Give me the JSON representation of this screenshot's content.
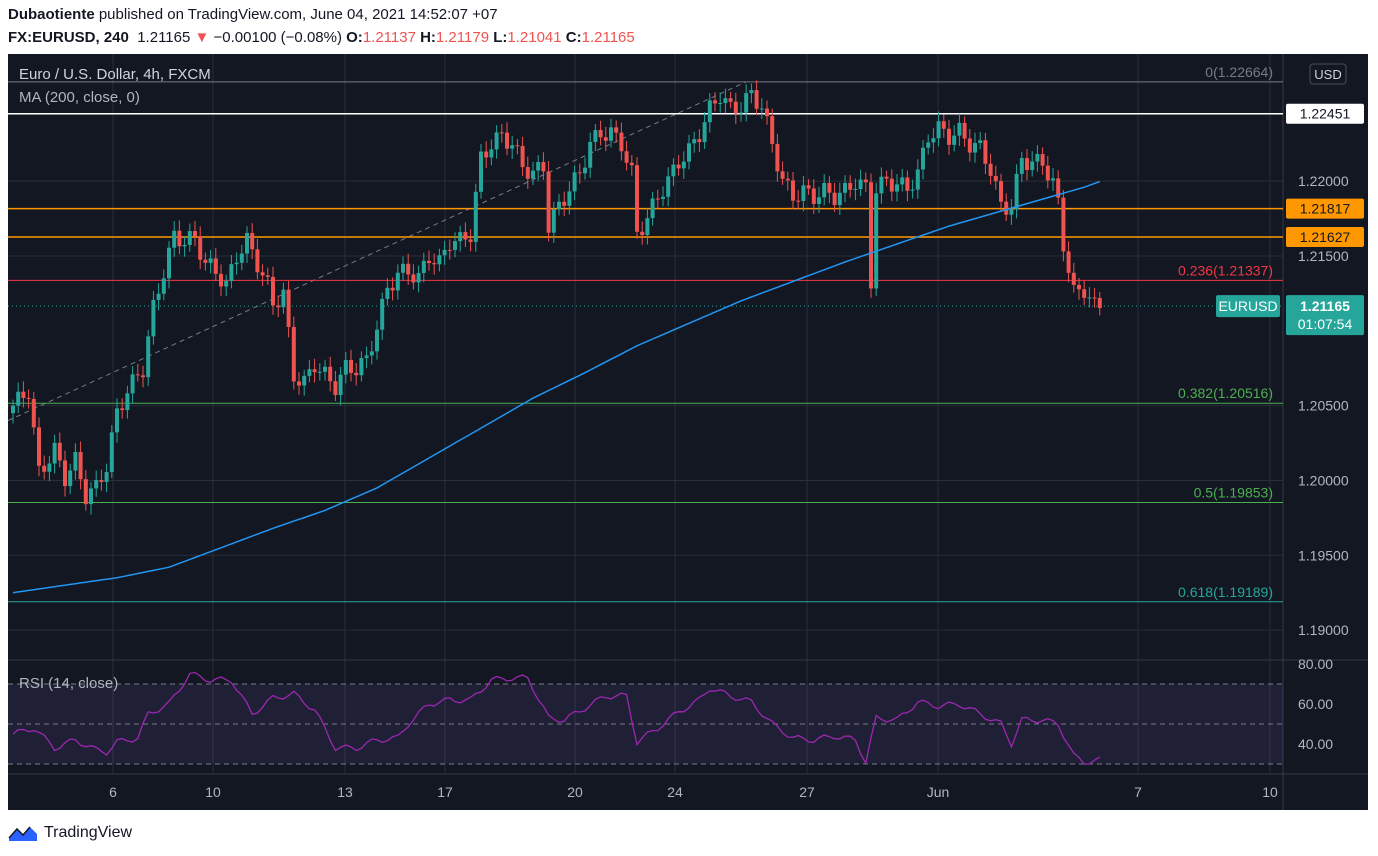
{
  "header": {
    "author": "Dubaotiente",
    "published": "published on TradingView.com, June 04, 2021 14:52:07 +07",
    "symbol": "FX:EURUSD, 240",
    "last": "1.21165",
    "change": "−0.00100 (−0.08%)",
    "o_label": "O:",
    "o": "1.21137",
    "h_label": "H:",
    "h": "1.21179",
    "l_label": "L:",
    "l": "1.21041",
    "c_label": "C:",
    "c": "1.21165",
    "down_arrow": "▼"
  },
  "legend": {
    "title": "Euro / U.S. Dollar, 4h, FXCM",
    "ma": "MA (200, close, 0)",
    "rsi": "RSI (14, close)"
  },
  "footer": {
    "brand": "TradingView"
  },
  "colors": {
    "background": "#131722",
    "up": "#26a69a",
    "down": "#ef5350",
    "ma": "#2196f3",
    "rsi": "#9c27b0",
    "orange": "#ff9800",
    "fib_green": "#4caf50",
    "fib_teal": "#26a69a",
    "fib_red": "#f23645"
  },
  "chart_data": [
    {
      "type": "candlestick",
      "title": "Euro / U.S. Dollar, 4h, FXCM",
      "currency": "USD",
      "ylim": [
        1.188,
        1.2285
      ],
      "y_ticks": [
        "1.19000",
        "1.19500",
        "1.20000",
        "1.20500",
        "1.21500",
        "1.22000"
      ],
      "x_ticks": [
        "6",
        "10",
        "13",
        "17",
        "20",
        "24",
        "27",
        "Jun",
        "7",
        "10"
      ],
      "hlines": [
        {
          "label": "1.22451",
          "value": 1.22451,
          "color": "#ffffff",
          "style": "badge-white"
        },
        {
          "label": "1.21817",
          "value": 1.21817,
          "color": "#ff9800",
          "style": "badge-orange"
        },
        {
          "label": "1.21627",
          "value": 1.21627,
          "color": "#ff9800",
          "style": "badge-orange"
        }
      ],
      "fib_levels": [
        {
          "label": "0(1.22664)",
          "value": 1.22664,
          "color": "#787b86"
        },
        {
          "label": "0.236(1.21337)",
          "value": 1.21337,
          "color": "#f23645"
        },
        {
          "label": "0.382(1.20516)",
          "value": 1.20516,
          "color": "#4caf50"
        },
        {
          "label": "0.5(1.19853)",
          "value": 1.19853,
          "color": "#4caf50"
        },
        {
          "label": "0.618(1.19189)",
          "value": 1.19189,
          "color": "#26a69a"
        }
      ],
      "last_price": {
        "symbol": "EURUSD",
        "value": "1.21165",
        "countdown": "01:07:54"
      },
      "ohlc_anchors": [
        [
          0,
          1.205
        ],
        [
          3,
          1.206
        ],
        [
          5,
          1.2005
        ],
        [
          8,
          1.202
        ],
        [
          10,
          1.2002
        ],
        [
          12,
          1.2013
        ],
        [
          14,
          1.199
        ],
        [
          16,
          1.1995
        ],
        [
          18,
          1.201
        ],
        [
          20,
          1.2045
        ],
        [
          22,
          1.206
        ],
        [
          25,
          1.2075
        ],
        [
          27,
          1.2115
        ],
        [
          29,
          1.214
        ],
        [
          31,
          1.2163
        ],
        [
          33,
          1.216
        ],
        [
          35,
          1.2162
        ],
        [
          37,
          1.2145
        ],
        [
          39,
          1.214
        ],
        [
          41,
          1.213
        ],
        [
          43,
          1.215
        ],
        [
          45,
          1.216
        ],
        [
          47,
          1.2145
        ],
        [
          49,
          1.213
        ],
        [
          50,
          1.2118
        ],
        [
          52,
          1.2125
        ],
        [
          54,
          1.207
        ],
        [
          56,
          1.2065
        ],
        [
          58,
          1.2078
        ],
        [
          60,
          1.207
        ],
        [
          62,
          1.2063
        ],
        [
          64,
          1.2075
        ],
        [
          66,
          1.2075
        ],
        [
          68,
          1.208
        ],
        [
          70,
          1.2103
        ],
        [
          72,
          1.2128
        ],
        [
          74,
          1.2138
        ],
        [
          76,
          1.214
        ],
        [
          78,
          1.2135
        ],
        [
          80,
          1.215
        ],
        [
          82,
          1.2145
        ],
        [
          84,
          1.216
        ],
        [
          86,
          1.216
        ],
        [
          88,
          1.2165
        ],
        [
          90,
          1.2215
        ],
        [
          92,
          1.2225
        ],
        [
          94,
          1.223
        ],
        [
          96,
          1.2225
        ],
        [
          98,
          1.221
        ],
        [
          100,
          1.2205
        ],
        [
          102,
          1.221
        ],
        [
          103,
          1.217
        ],
        [
          105,
          1.2183
        ],
        [
          107,
          1.2195
        ],
        [
          109,
          1.2205
        ],
        [
          111,
          1.2225
        ],
        [
          113,
          1.2232
        ],
        [
          115,
          1.2232
        ],
        [
          117,
          1.2225
        ],
        [
          119,
          1.2205
        ],
        [
          120,
          1.2165
        ],
        [
          122,
          1.2175
        ],
        [
          124,
          1.219
        ],
        [
          126,
          1.22
        ],
        [
          128,
          1.2213
        ],
        [
          130,
          1.222
        ],
        [
          132,
          1.2232
        ],
        [
          134,
          1.2248
        ],
        [
          136,
          1.2258
        ],
        [
          138,
          1.2248
        ],
        [
          140,
          1.225
        ],
        [
          142,
          1.2258
        ],
        [
          144,
          1.225
        ],
        [
          146,
          1.2225
        ],
        [
          148,
          1.22
        ],
        [
          150,
          1.219
        ],
        [
          152,
          1.2193
        ],
        [
          154,
          1.219
        ],
        [
          156,
          1.2193
        ],
        [
          158,
          1.219
        ],
        [
          160,
          1.2193
        ],
        [
          162,
          1.22
        ],
        [
          164,
          1.2195
        ],
        [
          165,
          1.2133
        ],
        [
          166,
          1.2195
        ],
        [
          168,
          1.22
        ],
        [
          170,
          1.2198
        ],
        [
          172,
          1.2195
        ],
        [
          174,
          1.2205
        ],
        [
          176,
          1.223
        ],
        [
          178,
          1.2235
        ],
        [
          180,
          1.223
        ],
        [
          182,
          1.2233
        ],
        [
          184,
          1.2225
        ],
        [
          186,
          1.2222
        ],
        [
          188,
          1.2208
        ],
        [
          190,
          1.2183
        ],
        [
          192,
          1.2183
        ],
        [
          194,
          1.2215
        ],
        [
          196,
          1.2212
        ],
        [
          198,
          1.2213
        ],
        [
          200,
          1.2198
        ],
        [
          201,
          1.2185
        ],
        [
          202,
          1.2158
        ],
        [
          204,
          1.2125
        ],
        [
          206,
          1.2128
        ],
        [
          208,
          1.2116
        ],
        [
          209,
          1.2117
        ]
      ],
      "ma200_anchors": [
        [
          0,
          1.1925
        ],
        [
          10,
          1.193
        ],
        [
          20,
          1.1935
        ],
        [
          30,
          1.1942
        ],
        [
          40,
          1.1955
        ],
        [
          50,
          1.1968
        ],
        [
          60,
          1.198
        ],
        [
          70,
          1.1995
        ],
        [
          80,
          1.2015
        ],
        [
          90,
          1.2035
        ],
        [
          100,
          1.2055
        ],
        [
          110,
          1.2072
        ],
        [
          120,
          1.209
        ],
        [
          130,
          1.2105
        ],
        [
          140,
          1.212
        ],
        [
          150,
          1.2133
        ],
        [
          160,
          1.2146
        ],
        [
          170,
          1.2158
        ],
        [
          180,
          1.217
        ],
        [
          190,
          1.218
        ],
        [
          200,
          1.219
        ],
        [
          206,
          1.2196
        ],
        [
          210,
          1.2201
        ]
      ]
    },
    {
      "type": "line",
      "title": "RSI (14, close)",
      "ylim": [
        25,
        82
      ],
      "y_ticks": [
        "40.00",
        "60.00",
        "80.00"
      ],
      "bands": [
        30,
        50,
        70
      ],
      "rsi_anchors": [
        [
          0,
          45
        ],
        [
          4,
          48
        ],
        [
          8,
          38
        ],
        [
          12,
          42
        ],
        [
          16,
          37
        ],
        [
          18,
          36
        ],
        [
          20,
          41
        ],
        [
          24,
          43
        ],
        [
          26,
          55
        ],
        [
          30,
          60
        ],
        [
          34,
          75
        ],
        [
          38,
          72
        ],
        [
          42,
          72
        ],
        [
          46,
          55
        ],
        [
          50,
          63
        ],
        [
          54,
          65
        ],
        [
          58,
          57
        ],
        [
          62,
          38
        ],
        [
          66,
          38
        ],
        [
          70,
          42
        ],
        [
          74,
          43
        ],
        [
          76,
          50
        ],
        [
          80,
          60
        ],
        [
          84,
          62
        ],
        [
          88,
          62
        ],
        [
          92,
          72
        ],
        [
          96,
          73
        ],
        [
          99,
          73
        ],
        [
          103,
          53
        ],
        [
          106,
          52
        ],
        [
          110,
          58
        ],
        [
          114,
          64
        ],
        [
          118,
          64
        ],
        [
          120,
          41
        ],
        [
          124,
          48
        ],
        [
          128,
          56
        ],
        [
          132,
          62
        ],
        [
          134,
          68
        ],
        [
          138,
          64
        ],
        [
          142,
          61
        ],
        [
          146,
          50
        ],
        [
          150,
          43
        ],
        [
          154,
          42
        ],
        [
          158,
          44
        ],
        [
          162,
          42
        ],
        [
          164,
          31
        ],
        [
          166,
          53
        ],
        [
          170,
          52
        ],
        [
          174,
          61
        ],
        [
          178,
          59
        ],
        [
          182,
          60
        ],
        [
          186,
          55
        ],
        [
          190,
          50
        ],
        [
          192,
          40
        ],
        [
          194,
          52
        ],
        [
          198,
          52
        ],
        [
          201,
          50
        ],
        [
          204,
          34
        ],
        [
          206,
          31
        ],
        [
          209,
          32
        ]
      ]
    }
  ]
}
